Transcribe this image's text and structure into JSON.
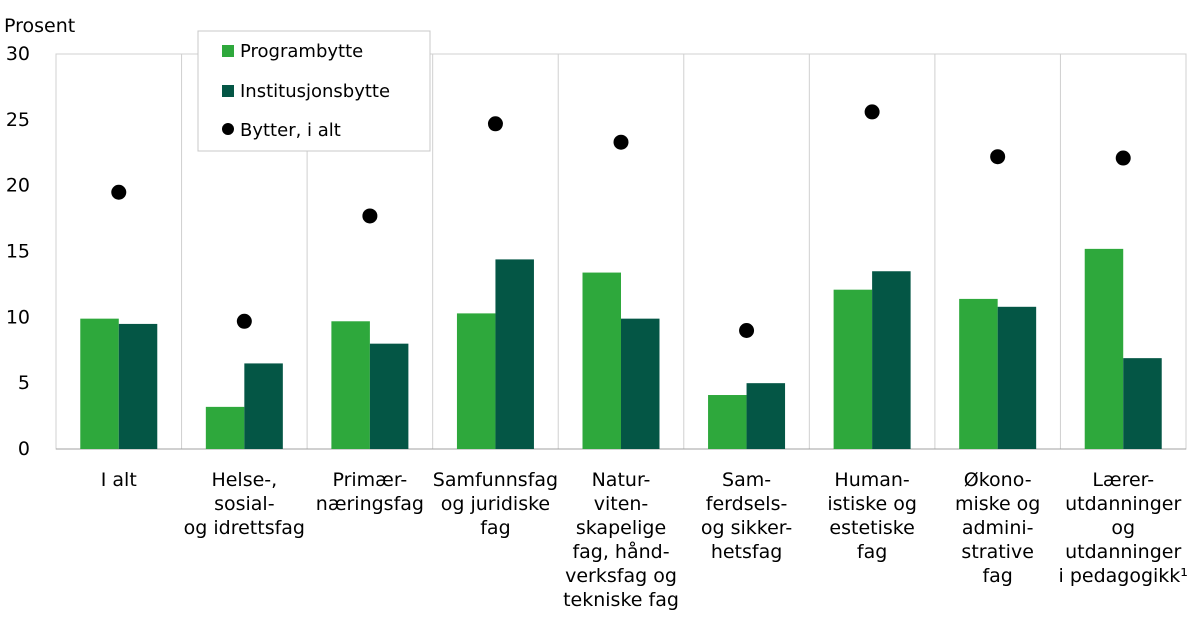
{
  "colors": {
    "programbytte": "#2ea83c",
    "institusjonsbytte": "#045645",
    "bytter_i_alt": "#000000",
    "gridline": "#d0d0d0",
    "axis": "#a0a0a0"
  },
  "chart_data": {
    "type": "bar",
    "title": "",
    "ylabel": "Prosent",
    "xlabel": "",
    "ylim": [
      0,
      30
    ],
    "yticks": [
      0,
      5,
      10,
      15,
      20,
      25,
      30
    ],
    "grid": "vertical separators and plot border",
    "legend_position": "top-left, inside plot",
    "categories": [
      [
        "I alt"
      ],
      [
        "Helse-,",
        "sosial-",
        "og idrettsfag"
      ],
      [
        "Primær-",
        "næringsfag"
      ],
      [
        "Samfunnsfag",
        "og juridiske",
        "fag"
      ],
      [
        "Natur-",
        "viten-",
        "skapelige",
        "fag, hånd-",
        "verksfag og",
        "tekniske fag"
      ],
      [
        "Sam-",
        "ferdsels-",
        "og sikker-",
        "hetsfag"
      ],
      [
        "Human-",
        "istiske og",
        "estetiske",
        "fag"
      ],
      [
        "Økono-",
        "miske og",
        "admini-",
        "strative",
        "fag"
      ],
      [
        "Lærer-",
        "utdanninger",
        "og",
        "utdanninger",
        "i pedagogikk¹"
      ]
    ],
    "series": [
      {
        "name": "Programbytte",
        "type": "bar",
        "values": [
          9.9,
          3.2,
          9.7,
          10.3,
          13.4,
          4.1,
          12.1,
          11.4,
          15.2
        ]
      },
      {
        "name": "Institusjonsbytte",
        "type": "bar",
        "values": [
          9.5,
          6.5,
          8.0,
          14.4,
          9.9,
          5.0,
          13.5,
          10.8,
          6.9
        ]
      },
      {
        "name": "Bytter, i alt",
        "type": "scatter",
        "values": [
          19.5,
          9.7,
          17.7,
          24.7,
          23.3,
          9.0,
          25.6,
          22.2,
          22.1
        ]
      }
    ]
  }
}
